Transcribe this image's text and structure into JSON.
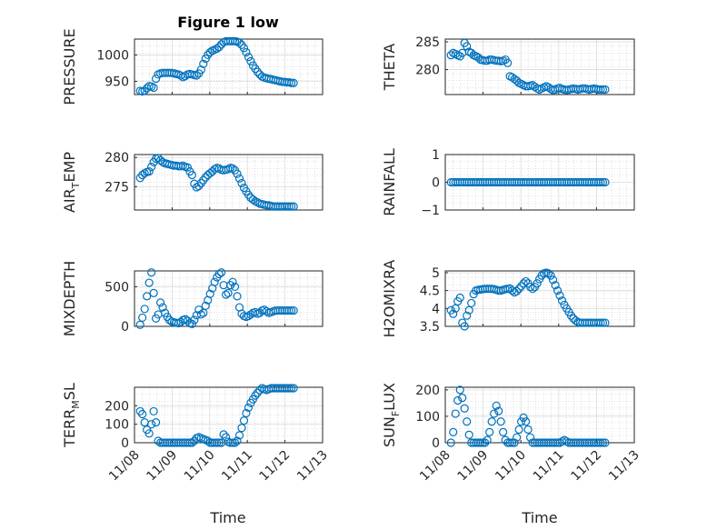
{
  "figure": {
    "title": "Figure 1 low",
    "xlabel": "Time"
  },
  "chart_data": [
    {
      "type": "scatter",
      "ylabel": "PRESSURE",
      "ylim": [
        925,
        1030
      ],
      "yticks": [
        950,
        1000
      ],
      "x": [
        0,
        0.06,
        0.12,
        0.18,
        0.24,
        0.3,
        0.36,
        0.42,
        0.48,
        0.54,
        0.6,
        0.66,
        0.72,
        0.78,
        0.84,
        0.9,
        0.96,
        1.02,
        1.08,
        1.14,
        1.2,
        1.26,
        1.32,
        1.38,
        1.44,
        1.5,
        1.56,
        1.62,
        1.68,
        1.74,
        1.8,
        1.86,
        1.92,
        1.98,
        2.04,
        2.1,
        2.16,
        2.22,
        2.28,
        2.34,
        2.4,
        2.46,
        2.52,
        2.58,
        2.64,
        2.7,
        2.76,
        2.82,
        2.88,
        2.94,
        3.0,
        3.06,
        3.12,
        3.18,
        3.24,
        3.3,
        3.36,
        3.42,
        3.48,
        3.54,
        3.6,
        3.66,
        3.72,
        3.78,
        3.84,
        3.9,
        3.96,
        4.02,
        4.08
      ],
      "y": [
        932,
        931,
        932,
        937,
        941,
        940,
        938,
        955,
        963,
        965,
        966,
        966,
        966,
        966,
        966,
        965,
        964,
        963,
        961,
        958,
        960,
        963,
        964,
        963,
        962,
        961,
        965,
        972,
        983,
        993,
        1000,
        1005,
        1008,
        1010,
        1012,
        1015,
        1020,
        1024,
        1026,
        1026,
        1026,
        1026,
        1026,
        1025,
        1023,
        1019,
        1013,
        1005,
        996,
        988,
        980,
        974,
        968,
        963,
        959,
        957,
        956,
        955,
        954,
        953,
        952,
        951,
        950,
        949,
        949,
        948,
        948,
        947,
        947
      ]
    },
    {
      "type": "scatter",
      "ylabel": "THETA",
      "ylim": [
        275.5,
        285.5
      ],
      "yticks": [
        280,
        285
      ],
      "x": [
        0,
        0.06,
        0.12,
        0.18,
        0.24,
        0.3,
        0.36,
        0.42,
        0.48,
        0.54,
        0.6,
        0.66,
        0.72,
        0.78,
        0.84,
        0.9,
        0.96,
        1.02,
        1.08,
        1.14,
        1.2,
        1.26,
        1.32,
        1.38,
        1.44,
        1.5,
        1.56,
        1.62,
        1.68,
        1.74,
        1.8,
        1.86,
        1.92,
        1.98,
        2.04,
        2.1,
        2.16,
        2.22,
        2.28,
        2.34,
        2.4,
        2.46,
        2.52,
        2.58,
        2.64,
        2.7,
        2.76,
        2.82,
        2.88,
        2.94,
        3.0,
        3.06,
        3.12,
        3.18,
        3.24,
        3.3,
        3.36,
        3.42,
        3.48,
        3.54,
        3.6,
        3.66,
        3.72,
        3.78,
        3.84,
        3.9,
        3.96,
        4.02,
        4.08
      ],
      "y": [
        282.6,
        283.0,
        282.8,
        282.6,
        282.4,
        283.0,
        284.8,
        284.2,
        283.2,
        283.0,
        282.6,
        282.4,
        282.2,
        281.8,
        281.7,
        281.6,
        281.6,
        281.8,
        281.8,
        281.7,
        281.6,
        281.6,
        281.5,
        281.6,
        281.8,
        281.2,
        278.8,
        278.6,
        278.3,
        278.0,
        277.6,
        277.4,
        277.2,
        277.0,
        277.0,
        277.1,
        277.2,
        276.9,
        276.6,
        276.4,
        276.6,
        276.8,
        277.0,
        276.8,
        276.5,
        276.3,
        276.4,
        276.6,
        276.7,
        276.5,
        276.4,
        276.3,
        276.4,
        276.5,
        276.6,
        276.5,
        276.4,
        276.5,
        276.6,
        276.6,
        276.5,
        276.4,
        276.5,
        276.6,
        276.5,
        276.4,
        276.4,
        276.4,
        276.4
      ]
    },
    {
      "type": "scatter",
      "ylabel": "AIR_TEMP",
      "ylim": [
        271,
        280.5
      ],
      "yticks": [
        275,
        280
      ],
      "x": [
        0,
        0.06,
        0.12,
        0.18,
        0.24,
        0.3,
        0.36,
        0.42,
        0.48,
        0.54,
        0.6,
        0.66,
        0.72,
        0.78,
        0.84,
        0.9,
        0.96,
        1.02,
        1.08,
        1.14,
        1.2,
        1.26,
        1.32,
        1.38,
        1.44,
        1.5,
        1.56,
        1.62,
        1.68,
        1.74,
        1.8,
        1.86,
        1.92,
        1.98,
        2.04,
        2.1,
        2.16,
        2.22,
        2.28,
        2.34,
        2.4,
        2.46,
        2.52,
        2.58,
        2.64,
        2.7,
        2.76,
        2.82,
        2.88,
        2.94,
        3.0,
        3.06,
        3.12,
        3.18,
        3.24,
        3.3,
        3.36,
        3.42,
        3.48,
        3.54,
        3.6,
        3.66,
        3.72,
        3.78,
        3.84,
        3.9,
        3.96,
        4.02,
        4.08
      ],
      "y": [
        276.5,
        277.0,
        277.3,
        277.5,
        277.6,
        278.4,
        279.2,
        279.8,
        279.9,
        279.5,
        279.2,
        279.0,
        278.9,
        278.8,
        278.7,
        278.6,
        278.6,
        278.5,
        278.5,
        278.6,
        278.4,
        278.3,
        277.6,
        277.0,
        275.5,
        274.9,
        275.1,
        275.6,
        276.1,
        276.6,
        277.0,
        277.3,
        277.6,
        278.0,
        278.2,
        278.1,
        277.9,
        277.8,
        277.9,
        278.0,
        278.2,
        278.1,
        277.8,
        277.2,
        276.4,
        275.6,
        274.8,
        274.2,
        273.6,
        273.1,
        272.8,
        272.5,
        272.3,
        272.1,
        272.0,
        271.9,
        271.8,
        271.8,
        271.7,
        271.6,
        271.6,
        271.6,
        271.6,
        271.6,
        271.6,
        271.6,
        271.6,
        271.6,
        271.6
      ]
    },
    {
      "type": "scatter",
      "ylabel": "RAINFALL",
      "ylim": [
        -1,
        1
      ],
      "yticks": [
        -1,
        0,
        1
      ],
      "x": [
        0,
        0.06,
        0.12,
        0.18,
        0.24,
        0.3,
        0.36,
        0.42,
        0.48,
        0.54,
        0.6,
        0.66,
        0.72,
        0.78,
        0.84,
        0.9,
        0.96,
        1.02,
        1.08,
        1.14,
        1.2,
        1.26,
        1.32,
        1.38,
        1.44,
        1.5,
        1.56,
        1.62,
        1.68,
        1.74,
        1.8,
        1.86,
        1.92,
        1.98,
        2.04,
        2.1,
        2.16,
        2.22,
        2.28,
        2.34,
        2.4,
        2.46,
        2.52,
        2.58,
        2.64,
        2.7,
        2.76,
        2.82,
        2.88,
        2.94,
        3.0,
        3.06,
        3.12,
        3.18,
        3.24,
        3.3,
        3.36,
        3.42,
        3.48,
        3.54,
        3.6,
        3.66,
        3.72,
        3.78,
        3.84,
        3.9,
        3.96,
        4.02,
        4.08
      ],
      "y": [
        0,
        0,
        0,
        0,
        0,
        0,
        0,
        0,
        0,
        0,
        0,
        0,
        0,
        0,
        0,
        0,
        0,
        0,
        0,
        0,
        0,
        0,
        0,
        0,
        0,
        0,
        0,
        0,
        0,
        0,
        0,
        0,
        0,
        0,
        0,
        0,
        0,
        0,
        0,
        0,
        0,
        0,
        0,
        0,
        0,
        0,
        0,
        0,
        0,
        0,
        0,
        0,
        0,
        0,
        0,
        0,
        0,
        0,
        0,
        0,
        0,
        0,
        0,
        0,
        0,
        0,
        0,
        0,
        0
      ]
    },
    {
      "type": "scatter",
      "ylabel": "MIXDEPTH",
      "ylim": [
        0,
        700
      ],
      "yticks": [
        0,
        500
      ],
      "x": [
        0,
        0.06,
        0.12,
        0.18,
        0.24,
        0.3,
        0.36,
        0.42,
        0.48,
        0.54,
        0.6,
        0.66,
        0.72,
        0.78,
        0.84,
        0.9,
        0.96,
        1.02,
        1.08,
        1.14,
        1.2,
        1.26,
        1.32,
        1.38,
        1.44,
        1.5,
        1.56,
        1.62,
        1.68,
        1.74,
        1.8,
        1.86,
        1.92,
        1.98,
        2.04,
        2.1,
        2.16,
        2.22,
        2.28,
        2.34,
        2.4,
        2.46,
        2.52,
        2.58,
        2.64,
        2.7,
        2.76,
        2.82,
        2.88,
        2.94,
        3.0,
        3.06,
        3.12,
        3.18,
        3.24,
        3.3,
        3.36,
        3.42,
        3.48,
        3.54,
        3.6,
        3.66,
        3.72,
        3.78,
        3.84,
        3.9,
        3.96,
        4.02,
        4.08
      ],
      "y": [
        20,
        110,
        220,
        380,
        550,
        680,
        420,
        100,
        150,
        300,
        240,
        170,
        120,
        80,
        60,
        50,
        45,
        40,
        55,
        80,
        90,
        70,
        40,
        30,
        80,
        140,
        210,
        150,
        170,
        260,
        330,
        410,
        480,
        560,
        620,
        660,
        680,
        520,
        400,
        420,
        520,
        560,
        500,
        380,
        240,
        160,
        130,
        120,
        130,
        150,
        170,
        180,
        160,
        170,
        200,
        210,
        190,
        170,
        180,
        190,
        200,
        200,
        200,
        200,
        200,
        200,
        200,
        200,
        200
      ]
    },
    {
      "type": "scatter",
      "ylabel": "H2OMIXRA",
      "ylim": [
        3.5,
        5.05
      ],
      "yticks": [
        3.5,
        4,
        4.5,
        5
      ],
      "x": [
        0,
        0.06,
        0.12,
        0.18,
        0.24,
        0.3,
        0.36,
        0.42,
        0.48,
        0.54,
        0.6,
        0.66,
        0.72,
        0.78,
        0.84,
        0.9,
        0.96,
        1.02,
        1.08,
        1.14,
        1.2,
        1.26,
        1.32,
        1.38,
        1.44,
        1.5,
        1.56,
        1.62,
        1.68,
        1.74,
        1.8,
        1.86,
        1.92,
        1.98,
        2.04,
        2.1,
        2.16,
        2.22,
        2.28,
        2.34,
        2.4,
        2.46,
        2.52,
        2.58,
        2.64,
        2.7,
        2.76,
        2.82,
        2.88,
        2.94,
        3.0,
        3.06,
        3.12,
        3.18,
        3.24,
        3.3,
        3.36,
        3.42,
        3.48,
        3.54,
        3.6,
        3.66,
        3.72,
        3.78,
        3.84,
        3.9,
        3.96,
        4.02,
        4.08
      ],
      "y": [
        3.95,
        3.85,
        4.0,
        4.2,
        4.3,
        3.6,
        3.5,
        3.8,
        3.95,
        4.15,
        4.4,
        4.5,
        4.52,
        4.53,
        4.54,
        4.55,
        4.55,
        4.55,
        4.55,
        4.54,
        4.52,
        4.5,
        4.5,
        4.52,
        4.54,
        4.55,
        4.56,
        4.5,
        4.45,
        4.48,
        4.55,
        4.62,
        4.7,
        4.76,
        4.7,
        4.6,
        4.55,
        4.6,
        4.7,
        4.82,
        4.92,
        4.98,
        5.0,
        4.98,
        4.92,
        4.8,
        4.65,
        4.5,
        4.36,
        4.22,
        4.1,
        4.0,
        3.9,
        3.8,
        3.72,
        3.66,
        3.62,
        3.6,
        3.6,
        3.6,
        3.6,
        3.6,
        3.6,
        3.6,
        3.6,
        3.6,
        3.6,
        3.6,
        3.6
      ]
    },
    {
      "type": "scatter",
      "ylabel": "TERR_MSL",
      "ylim": [
        0,
        300
      ],
      "yticks": [
        0,
        100,
        200
      ],
      "x": [
        0,
        0.06,
        0.12,
        0.18,
        0.24,
        0.3,
        0.36,
        0.42,
        0.48,
        0.54,
        0.6,
        0.66,
        0.72,
        0.78,
        0.84,
        0.9,
        0.96,
        1.02,
        1.08,
        1.14,
        1.2,
        1.26,
        1.32,
        1.38,
        1.44,
        1.5,
        1.56,
        1.62,
        1.68,
        1.74,
        1.8,
        1.86,
        1.92,
        1.98,
        2.04,
        2.1,
        2.16,
        2.22,
        2.28,
        2.34,
        2.4,
        2.46,
        2.52,
        2.58,
        2.64,
        2.7,
        2.76,
        2.82,
        2.88,
        2.94,
        3.0,
        3.06,
        3.12,
        3.18,
        3.24,
        3.3,
        3.36,
        3.42,
        3.48,
        3.54,
        3.6,
        3.66,
        3.72,
        3.78,
        3.84,
        3.9,
        3.96,
        4.02,
        4.08
      ],
      "y": [
        170,
        155,
        110,
        70,
        50,
        100,
        170,
        110,
        10,
        0,
        0,
        0,
        0,
        0,
        0,
        0,
        0,
        0,
        0,
        0,
        0,
        0,
        0,
        0,
        10,
        25,
        30,
        25,
        20,
        15,
        10,
        0,
        0,
        0,
        0,
        0,
        0,
        45,
        30,
        5,
        0,
        0,
        0,
        10,
        40,
        80,
        120,
        160,
        190,
        215,
        235,
        255,
        270,
        285,
        295,
        290,
        285,
        290,
        295,
        295,
        295,
        295,
        295,
        295,
        295,
        295,
        295,
        295,
        295
      ]
    },
    {
      "type": "scatter",
      "ylabel": "SUN_FLUX",
      "ylim": [
        0,
        210
      ],
      "yticks": [
        0,
        100,
        200
      ],
      "x": [
        0,
        0.06,
        0.12,
        0.18,
        0.24,
        0.3,
        0.36,
        0.42,
        0.48,
        0.54,
        0.6,
        0.66,
        0.72,
        0.78,
        0.84,
        0.9,
        0.96,
        1.02,
        1.08,
        1.14,
        1.2,
        1.26,
        1.32,
        1.38,
        1.44,
        1.5,
        1.56,
        1.62,
        1.68,
        1.74,
        1.8,
        1.86,
        1.92,
        1.98,
        2.04,
        2.1,
        2.16,
        2.22,
        2.28,
        2.34,
        2.4,
        2.46,
        2.52,
        2.58,
        2.64,
        2.7,
        2.76,
        2.82,
        2.88,
        2.94,
        3.0,
        3.06,
        3.12,
        3.18,
        3.24,
        3.3,
        3.36,
        3.42,
        3.48,
        3.54,
        3.6,
        3.66,
        3.72,
        3.78,
        3.84,
        3.9,
        3.96,
        4.02,
        4.08
      ],
      "y": [
        0,
        40,
        110,
        160,
        200,
        170,
        130,
        80,
        30,
        0,
        0,
        0,
        0,
        0,
        0,
        0,
        10,
        40,
        80,
        110,
        140,
        120,
        80,
        40,
        10,
        0,
        0,
        0,
        0,
        20,
        50,
        80,
        95,
        80,
        50,
        20,
        0,
        0,
        0,
        0,
        0,
        0,
        0,
        0,
        0,
        0,
        0,
        0,
        0,
        5,
        10,
        5,
        0,
        0,
        0,
        0,
        0,
        0,
        0,
        0,
        0,
        0,
        0,
        0,
        0,
        0,
        0,
        0,
        0
      ]
    }
  ],
  "time_axis": {
    "ticks": [
      "11/08",
      "11/09",
      "11/10",
      "11/11",
      "11/12",
      "11/13"
    ]
  }
}
